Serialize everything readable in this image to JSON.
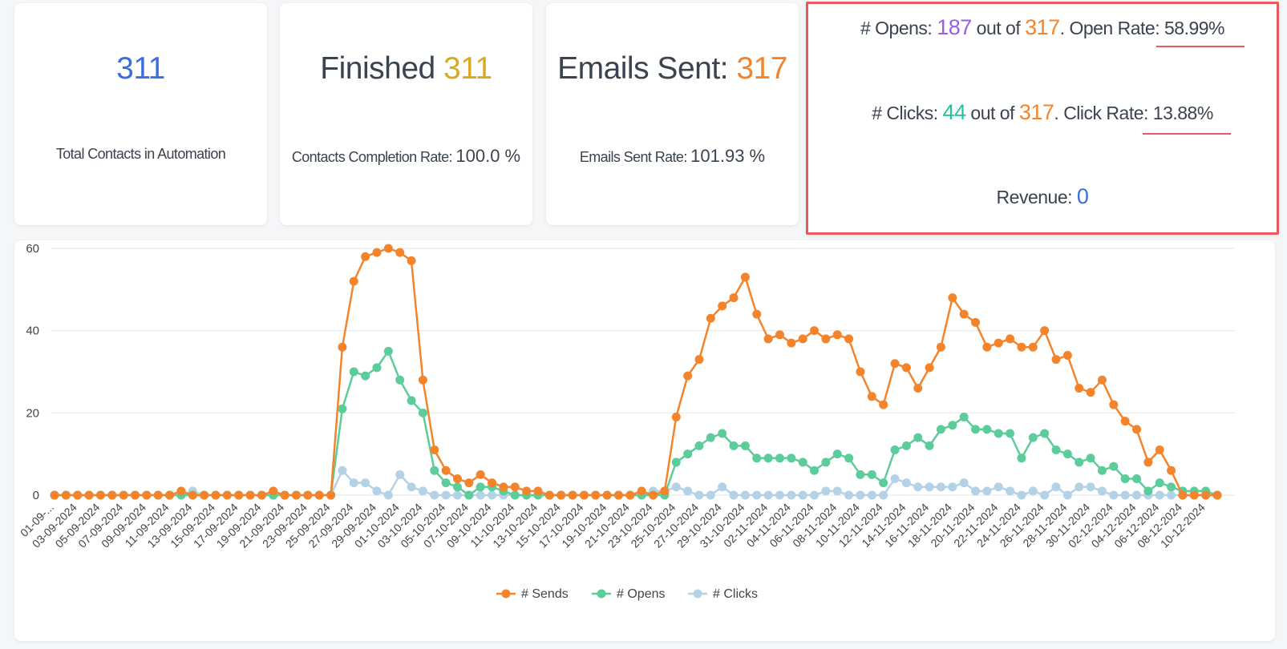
{
  "stats": {
    "total_contacts": {
      "value": "311",
      "label": "Total Contacts in Automation"
    },
    "finished": {
      "prefix": "Finished ",
      "value": "311",
      "rate_label": "Contacts Completion Rate:",
      "rate_value": "100.0 %"
    },
    "emails_sent": {
      "prefix": "Emails Sent: ",
      "value": "317",
      "rate_label": "Emails Sent Rate:",
      "rate_value": "101.93 %"
    },
    "summary": {
      "opens_label": "# Opens: ",
      "opens": "187",
      "out_of_1": " out of ",
      "opens_total": "317",
      "open_rate_label": ". Open Rate: ",
      "open_rate": "58.99%",
      "clicks_label": "# Clicks: ",
      "clicks": "44",
      "out_of_2": " out of ",
      "clicks_total": "317",
      "click_rate_label": ". Click Rate: ",
      "click_rate": "13.88%",
      "revenue_label": "Revenue: ",
      "revenue": "0"
    }
  },
  "colors": {
    "sends": "#f4842b",
    "opens": "#5ccc9a",
    "clicks": "#b3d2e6",
    "highlight": "#e85a5f"
  },
  "chart_data": {
    "type": "line",
    "ylim": [
      0,
      60
    ],
    "yticks": [
      "0",
      "20",
      "40",
      "60"
    ],
    "x_labels": [
      "01-09-...",
      "03-09-2024",
      "05-09-2024",
      "07-09-2024",
      "09-09-2024",
      "11-09-2024",
      "13-09-2024",
      "15-09-2024",
      "17-09-2024",
      "19-09-2024",
      "21-09-2024",
      "23-09-2024",
      "25-09-2024",
      "27-09-2024",
      "29-09-2024",
      "01-10-2024",
      "03-10-2024",
      "05-10-2024",
      "07-10-2024",
      "09-10-2024",
      "11-10-2024",
      "13-10-2024",
      "15-10-2024",
      "17-10-2024",
      "19-10-2024",
      "21-10-2024",
      "23-10-2024",
      "25-10-2024",
      "27-10-2024",
      "29-10-2024",
      "31-10-2024",
      "02-11-2024",
      "04-11-2024",
      "06-11-2024",
      "08-11-2024",
      "10-11-2024",
      "12-11-2024",
      "14-11-2024",
      "16-11-2024",
      "18-11-2024",
      "20-11-2024",
      "22-11-2024",
      "24-11-2024",
      "26-11-2024",
      "28-11-2024",
      "30-11-2024",
      "02-12-2024",
      "04-12-2024",
      "06-12-2024",
      "08-12-2024",
      "10-12-2024"
    ],
    "series": [
      {
        "name": "# Sends",
        "values": [
          0,
          0,
          0,
          0,
          0,
          0,
          0,
          0,
          0,
          0,
          0,
          1,
          0,
          0,
          0,
          0,
          0,
          0,
          0,
          1,
          0,
          0,
          0,
          0,
          0,
          36,
          52,
          58,
          59,
          60,
          59,
          57,
          28,
          11,
          6,
          4,
          3,
          5,
          3,
          2,
          2,
          1,
          1,
          0,
          0,
          0,
          0,
          0,
          0,
          0,
          0,
          1,
          0,
          1,
          19,
          29,
          33,
          43,
          46,
          48,
          53,
          44,
          38,
          39,
          37,
          38,
          40,
          38,
          39,
          38,
          30,
          24,
          22,
          32,
          31,
          26,
          31,
          36,
          48,
          44,
          42,
          36,
          37,
          38,
          36,
          36,
          40,
          33,
          34,
          26,
          25,
          28,
          22,
          18,
          16,
          8,
          11,
          6,
          0,
          0,
          0,
          0
        ]
      },
      {
        "name": "# Opens",
        "values": [
          0,
          0,
          0,
          0,
          0,
          0,
          0,
          0,
          0,
          0,
          0,
          0,
          0,
          0,
          0,
          0,
          0,
          0,
          0,
          0,
          0,
          0,
          0,
          0,
          0,
          21,
          30,
          29,
          31,
          35,
          28,
          23,
          20,
          6,
          3,
          2,
          0,
          2,
          2,
          1,
          0,
          0,
          0,
          0,
          0,
          0,
          0,
          0,
          0,
          0,
          0,
          0,
          0,
          0,
          8,
          10,
          12,
          14,
          15,
          12,
          12,
          9,
          9,
          9,
          9,
          8,
          6,
          8,
          10,
          9,
          5,
          5,
          3,
          11,
          12,
          14,
          12,
          16,
          17,
          19,
          16,
          16,
          15,
          15,
          9,
          14,
          15,
          11,
          10,
          8,
          9,
          6,
          7,
          4,
          4,
          1,
          3,
          2,
          1,
          1,
          1,
          0
        ]
      },
      {
        "name": "# Clicks",
        "values": [
          0,
          0,
          0,
          0,
          0,
          0,
          0,
          0,
          0,
          0,
          0,
          0,
          1,
          0,
          0,
          0,
          0,
          0,
          0,
          0,
          0,
          0,
          0,
          0,
          0,
          6,
          3,
          3,
          1,
          0,
          5,
          2,
          1,
          0,
          0,
          0,
          0,
          0,
          0,
          0,
          0,
          0,
          0,
          0,
          0,
          0,
          0,
          0,
          0,
          0,
          0,
          0,
          1,
          1,
          2,
          1,
          0,
          0,
          2,
          0,
          0,
          0,
          0,
          0,
          0,
          0,
          0,
          1,
          1,
          0,
          0,
          0,
          0,
          4,
          3,
          2,
          2,
          2,
          2,
          3,
          1,
          1,
          2,
          1,
          0,
          1,
          0,
          2,
          0,
          2,
          2,
          1,
          0,
          0,
          0,
          0,
          0,
          0,
          0,
          0,
          0,
          0
        ]
      }
    ]
  }
}
